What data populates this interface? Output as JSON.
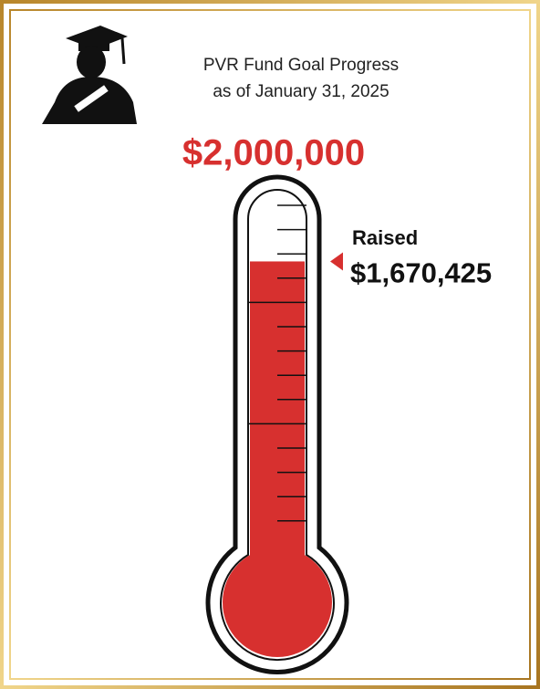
{
  "chart_data": {
    "type": "thermometer",
    "title": "PVR Fund Goal Progress",
    "subtitle": "as of January 31, 2025",
    "goal": 2000000,
    "goal_label": "$2,000,000",
    "value_name": "Raised",
    "value": 1670425,
    "value_label": "$1,670,425",
    "ylim": [
      0,
      2000000
    ],
    "color": "#d7302f"
  }
}
